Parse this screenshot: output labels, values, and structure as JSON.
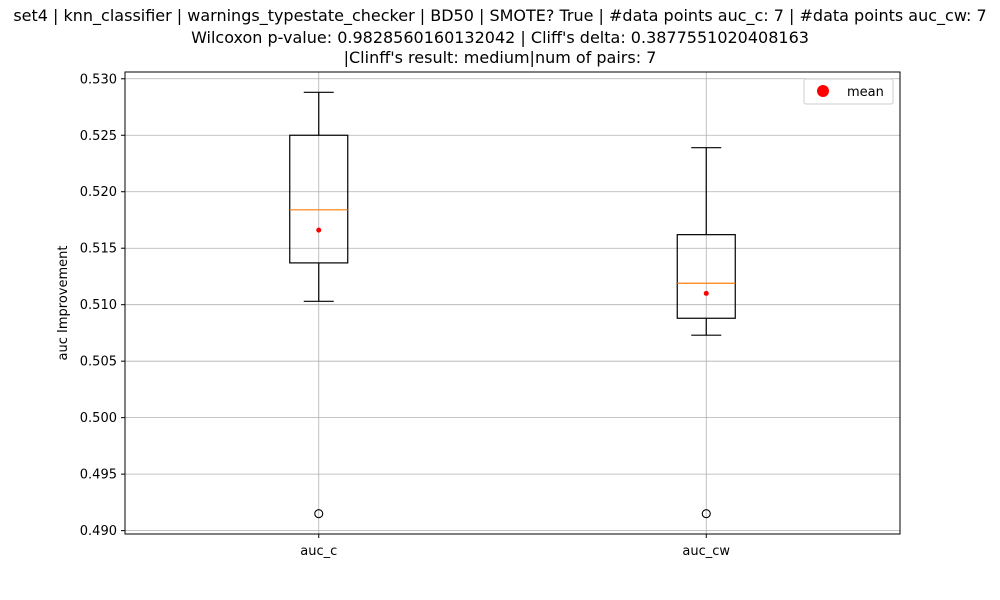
{
  "chart_data": {
    "type": "box",
    "title_lines": [
      "set4 | knn_classifier | warnings_typestate_checker | BD50 | SMOTE? True | #data points auc_c: 7 | #data points auc_cw: 7",
      "Wilcoxon p-value: 0.9828560160132042 | Cliff's delta: 0.3877551020408163",
      "|Clinff's result: medium|num of pairs: 7"
    ],
    "ylabel": "auc Improvement",
    "xlabel": "",
    "ylim": [
      0.4897,
      0.5306
    ],
    "yticks": [
      0.49,
      0.495,
      0.5,
      0.505,
      0.51,
      0.515,
      0.52,
      0.525,
      0.53
    ],
    "ytick_labels": [
      "0.490",
      "0.495",
      "0.500",
      "0.505",
      "0.510",
      "0.515",
      "0.520",
      "0.525",
      "0.530"
    ],
    "grid": true,
    "legend": {
      "position": "top-right",
      "entries": [
        {
          "label": "mean",
          "color": "#ff0000"
        }
      ]
    },
    "categories": [
      "auc_c",
      "auc_cw"
    ],
    "boxes": [
      {
        "name": "auc_c",
        "whisker_low": 0.5103,
        "q1": 0.5137,
        "median": 0.5184,
        "q3": 0.525,
        "whisker_high": 0.5288,
        "mean": 0.5166,
        "outliers": [
          0.4915
        ]
      },
      {
        "name": "auc_cw",
        "whisker_low": 0.5073,
        "q1": 0.5088,
        "median": 0.5119,
        "q3": 0.5162,
        "whisker_high": 0.5239,
        "mean": 0.511,
        "outliers": [
          0.4915
        ]
      }
    ],
    "colors": {
      "box": "#000000",
      "median": "#ff7f0e",
      "mean": "#ff0000",
      "grid": "#b0b0b0"
    }
  }
}
